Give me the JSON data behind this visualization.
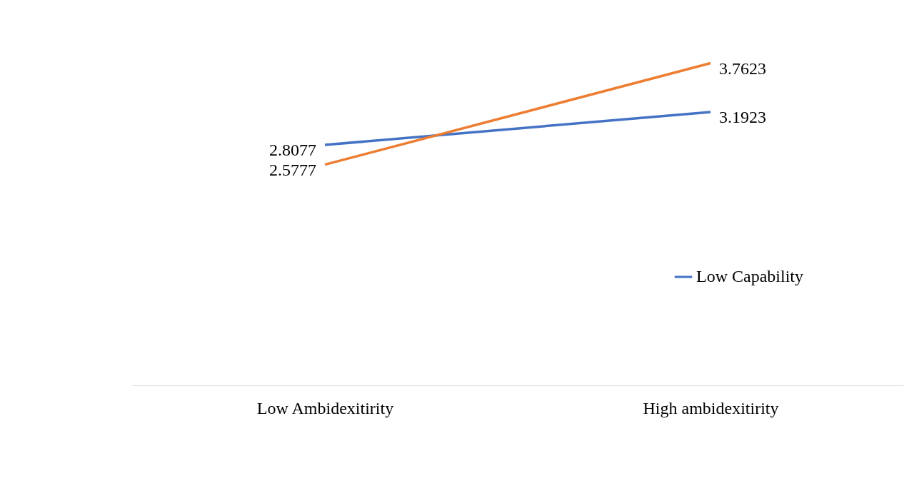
{
  "chart_data": {
    "type": "line",
    "categories": [
      "Low Ambidexitirity",
      "High ambidexitirity"
    ],
    "series": [
      {
        "name": "Low Capability",
        "color": "#4472c4",
        "values": [
          2.8077,
          3.1923
        ]
      },
      {
        "color": "#ed7d31",
        "values": [
          2.5777,
          3.7623
        ]
      }
    ],
    "tick_labels": "x",
    "data_labels": true,
    "legend": "bottom right",
    "grid": false,
    "marker": "none",
    "line_style": "solid"
  }
}
